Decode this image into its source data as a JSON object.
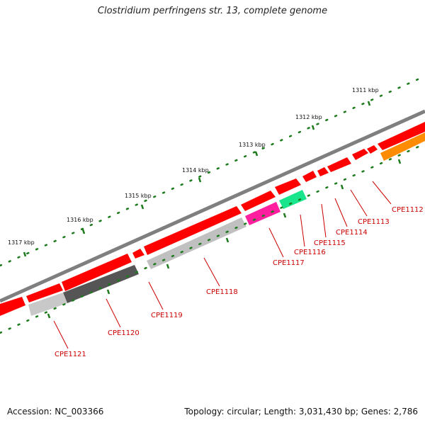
{
  "title": "Clostridium perfringens str. 13, complete genome",
  "accession": "Accession: NC_003366",
  "summary": "Topology: circular; Length: 3,031,430 bp; Genes: 2,786",
  "colors": {
    "backbone": "#7f7f7f",
    "forward_gene": "#ff0000",
    "label": "#cc0000",
    "ruler": "#1d7a1d",
    "hit_orange": "#ff8c00",
    "hit_green": "#19e68c",
    "hit_magenta": "#ff1f9f",
    "hit_light_gray": "#c0c0c0",
    "hit_dark_gray": "#555555"
  },
  "kbp_labels": [
    "1311 kbp",
    "1312 kbp",
    "1313 kbp",
    "1314 kbp",
    "1315 kbp",
    "1316 kbp",
    "1317 kbp"
  ],
  "gene_labels": [
    "CPE1112",
    "CPE1113",
    "CPE1114",
    "CPE1115",
    "CPE1116",
    "CPE1117",
    "CPE1118",
    "CPE1119",
    "CPE1120",
    "CPE1121"
  ]
}
